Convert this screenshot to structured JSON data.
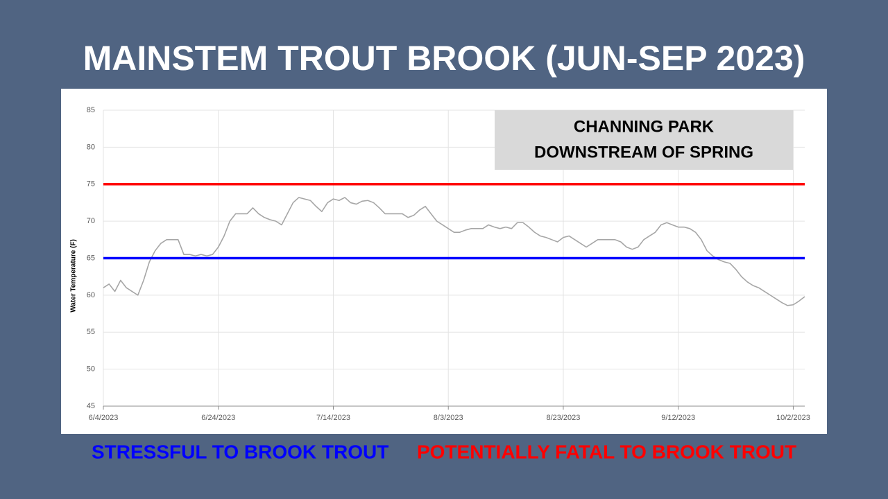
{
  "chart_data": {
    "type": "line",
    "title": "MAINSTEM TROUT BROOK (JUN-SEP 2023)",
    "annotation": [
      "CHANNING PARK",
      "DOWNSTREAM OF SPRING"
    ],
    "y_label": "Water Temperature (F)",
    "color": "#a6a6a6",
    "grid": true,
    "xlim": [
      "2023-06-04",
      "2023-10-04"
    ],
    "xticks": [
      {
        "value": "2023-06-04",
        "label": "6/4/2023"
      },
      {
        "value": "2023-06-24",
        "label": "6/24/2023"
      },
      {
        "value": "2023-07-14",
        "label": "7/14/2023"
      },
      {
        "value": "2023-08-03",
        "label": "8/3/2023"
      },
      {
        "value": "2023-08-23",
        "label": "8/23/2023"
      },
      {
        "value": "2023-09-12",
        "label": "9/12/2023"
      },
      {
        "value": "2023-10-02",
        "label": "10/2/2023"
      }
    ],
    "ylim": [
      45,
      85
    ],
    "yticks": [
      45,
      50,
      55,
      60,
      65,
      70,
      75,
      80,
      85
    ],
    "thresholds": [
      {
        "label": "STRESSFUL TO BROOK TROUT",
        "value": 65,
        "color": "#0000ff"
      },
      {
        "label": "POTENTIALLY FATAL TO BROOK TROUT",
        "value": 75,
        "color": "#ff0000"
      }
    ],
    "x": [
      "2023-06-04",
      "2023-06-05",
      "2023-06-06",
      "2023-06-07",
      "2023-06-08",
      "2023-06-09",
      "2023-06-10",
      "2023-06-11",
      "2023-06-12",
      "2023-06-13",
      "2023-06-14",
      "2023-06-15",
      "2023-06-16",
      "2023-06-17",
      "2023-06-18",
      "2023-06-19",
      "2023-06-20",
      "2023-06-21",
      "2023-06-22",
      "2023-06-23",
      "2023-06-24",
      "2023-06-25",
      "2023-06-26",
      "2023-06-27",
      "2023-06-28",
      "2023-06-29",
      "2023-06-30",
      "2023-07-01",
      "2023-07-02",
      "2023-07-03",
      "2023-07-04",
      "2023-07-05",
      "2023-07-06",
      "2023-07-07",
      "2023-07-08",
      "2023-07-09",
      "2023-07-10",
      "2023-07-11",
      "2023-07-12",
      "2023-07-13",
      "2023-07-14",
      "2023-07-15",
      "2023-07-16",
      "2023-07-17",
      "2023-07-18",
      "2023-07-19",
      "2023-07-20",
      "2023-07-21",
      "2023-07-22",
      "2023-07-23",
      "2023-07-24",
      "2023-07-25",
      "2023-07-26",
      "2023-07-27",
      "2023-07-28",
      "2023-07-29",
      "2023-07-30",
      "2023-07-31",
      "2023-08-01",
      "2023-08-02",
      "2023-08-03",
      "2023-08-04",
      "2023-08-05",
      "2023-08-06",
      "2023-08-07",
      "2023-08-08",
      "2023-08-09",
      "2023-08-10",
      "2023-08-11",
      "2023-08-12",
      "2023-08-13",
      "2023-08-14",
      "2023-08-15",
      "2023-08-16",
      "2023-08-17",
      "2023-08-18",
      "2023-08-19",
      "2023-08-20",
      "2023-08-21",
      "2023-08-22",
      "2023-08-23",
      "2023-08-24",
      "2023-08-25",
      "2023-08-26",
      "2023-08-27",
      "2023-08-28",
      "2023-08-29",
      "2023-08-30",
      "2023-08-31",
      "2023-09-01",
      "2023-09-02",
      "2023-09-03",
      "2023-09-04",
      "2023-09-05",
      "2023-09-06",
      "2023-09-07",
      "2023-09-08",
      "2023-09-09",
      "2023-09-10",
      "2023-09-11",
      "2023-09-12",
      "2023-09-13",
      "2023-09-14",
      "2023-09-15",
      "2023-09-16",
      "2023-09-17",
      "2023-09-18",
      "2023-09-19",
      "2023-09-20",
      "2023-09-21",
      "2023-09-22",
      "2023-09-23",
      "2023-09-24",
      "2023-09-25",
      "2023-09-26",
      "2023-09-27",
      "2023-09-28",
      "2023-09-29",
      "2023-09-30",
      "2023-10-01",
      "2023-10-02",
      "2023-10-03",
      "2023-10-04"
    ],
    "values": [
      61,
      61.5,
      60.5,
      62,
      61,
      60.5,
      60,
      62,
      64.5,
      66,
      67,
      67.5,
      67.5,
      67.5,
      65.5,
      65.5,
      65.3,
      65.5,
      65.3,
      65.5,
      66.5,
      68,
      70,
      71,
      71,
      71,
      71.8,
      71,
      70.5,
      70.2,
      70,
      69.5,
      71,
      72.5,
      73.2,
      73,
      72.8,
      72,
      71.3,
      72.5,
      73,
      72.8,
      73.2,
      72.5,
      72.3,
      72.7,
      72.8,
      72.5,
      71.8,
      71,
      71,
      71,
      71,
      70.5,
      70.8,
      71.5,
      72,
      71,
      70,
      69.5,
      69,
      68.5,
      68.5,
      68.8,
      69,
      69,
      69,
      69.5,
      69.2,
      69,
      69.2,
      69,
      69.8,
      69.8,
      69.2,
      68.5,
      68,
      67.8,
      67.5,
      67.2,
      67.8,
      68,
      67.5,
      67,
      66.5,
      67,
      67.5,
      67.5,
      67.5,
      67.5,
      67.2,
      66.5,
      66.2,
      66.5,
      67.5,
      68,
      68.5,
      69.5,
      69.8,
      69.5,
      69.2,
      69.2,
      69,
      68.5,
      67.5,
      66,
      65.3,
      64.8,
      64.5,
      64.3,
      63.5,
      62.5,
      61.8,
      61.3,
      61,
      60.5,
      60,
      59.5,
      59,
      58.6,
      58.7,
      59.2,
      59.8
    ]
  }
}
